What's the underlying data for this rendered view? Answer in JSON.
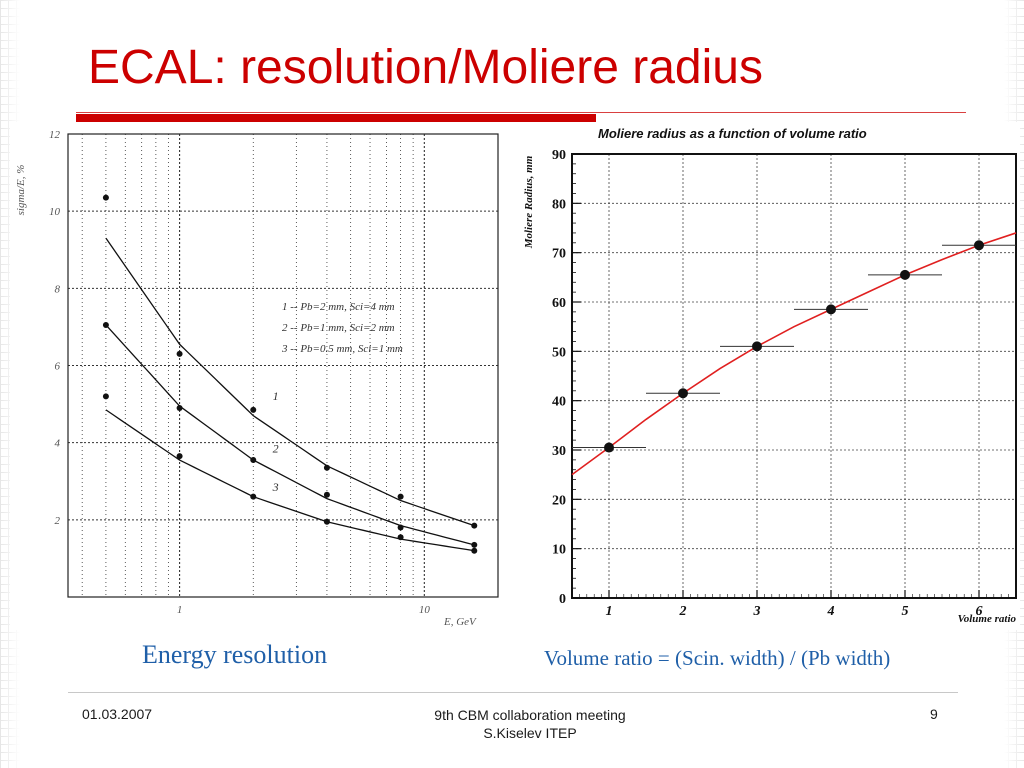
{
  "slide": {
    "title": "ECAL: resolution/Moliere radius",
    "caption_left": "Energy resolution",
    "caption_right": "Volume ratio = (Scin. width) / (Pb width)",
    "footer_date": "01.03.2007",
    "footer_meeting_line1": "9th CBM collaboration meeting",
    "footer_meeting_line2": "S.Kiselev ITEP",
    "footer_page": "9"
  },
  "colors": {
    "title": "#cc0000",
    "caption": "#1f5fa8",
    "fit_curve": "#e02020"
  },
  "chart_data": [
    {
      "type": "scatter",
      "title": "",
      "xlabel": "E, GeV",
      "ylabel": "sigma/E, %",
      "x_scale": "log",
      "xlim": [
        0.35,
        20
      ],
      "ylim": [
        0,
        12
      ],
      "x_tick_labels": [
        "1",
        "10"
      ],
      "y_tick_labels": [
        "2",
        "4",
        "6",
        "8",
        "10",
        "12"
      ],
      "grid": true,
      "legend": [
        "1 -- Pb=2 mm, Sci=4 mm",
        "2 -- Pb=1 mm, Sci=2 mm",
        "3 -- Pb=0.5 mm, Sci=1 mm"
      ],
      "legend_position": "center-right",
      "curve_labels": [
        "1",
        "2",
        "3"
      ],
      "series": [
        {
          "name": "1",
          "x": [
            0.5,
            1,
            2,
            4,
            8,
            16
          ],
          "y": [
            10.35,
            6.3,
            4.85,
            3.35,
            2.6,
            1.85
          ]
        },
        {
          "name": "2",
          "x": [
            0.5,
            1,
            2,
            4,
            8,
            16
          ],
          "y": [
            7.05,
            4.9,
            3.55,
            2.65,
            1.8,
            1.35
          ]
        },
        {
          "name": "3",
          "x": [
            0.5,
            1,
            2,
            4,
            8,
            16
          ],
          "y": [
            5.2,
            3.65,
            2.6,
            1.95,
            1.55,
            1.2
          ]
        }
      ],
      "fits": [
        {
          "series": "1",
          "y": [
            9.3,
            6.55,
            4.7,
            3.4,
            2.5,
            1.85
          ]
        },
        {
          "series": "2",
          "y": [
            7.05,
            4.95,
            3.55,
            2.55,
            1.85,
            1.35
          ]
        },
        {
          "series": "3",
          "y": [
            4.85,
            3.55,
            2.6,
            1.95,
            1.5,
            1.2
          ]
        }
      ]
    },
    {
      "type": "scatter",
      "title": "Moliere radius as a function of volume ratio",
      "xlabel": "Volume ratio",
      "ylabel": "Moliere Radius, mm",
      "xlim": [
        0.5,
        6.5
      ],
      "ylim": [
        0,
        90
      ],
      "x_tick_labels": [
        "1",
        "2",
        "3",
        "4",
        "5",
        "6"
      ],
      "y_tick_labels": [
        "0",
        "10",
        "20",
        "30",
        "40",
        "50",
        "60",
        "70",
        "80",
        "90"
      ],
      "grid": true,
      "x": [
        1,
        2,
        3,
        4,
        5,
        6
      ],
      "y": [
        30.5,
        41.5,
        51,
        58.5,
        65.5,
        71.5
      ],
      "x_error": [
        0.5,
        0.5,
        0.5,
        0.5,
        0.5,
        0.5
      ],
      "fit_line": {
        "x": [
          0.5,
          1,
          1.5,
          2,
          2.5,
          3,
          3.5,
          4,
          4.5,
          5,
          5.5,
          6,
          6.5
        ],
        "y": [
          25,
          30.5,
          36.2,
          41.5,
          46.5,
          51,
          55,
          58.5,
          62,
          65.5,
          68.6,
          71.5,
          74
        ]
      }
    }
  ]
}
